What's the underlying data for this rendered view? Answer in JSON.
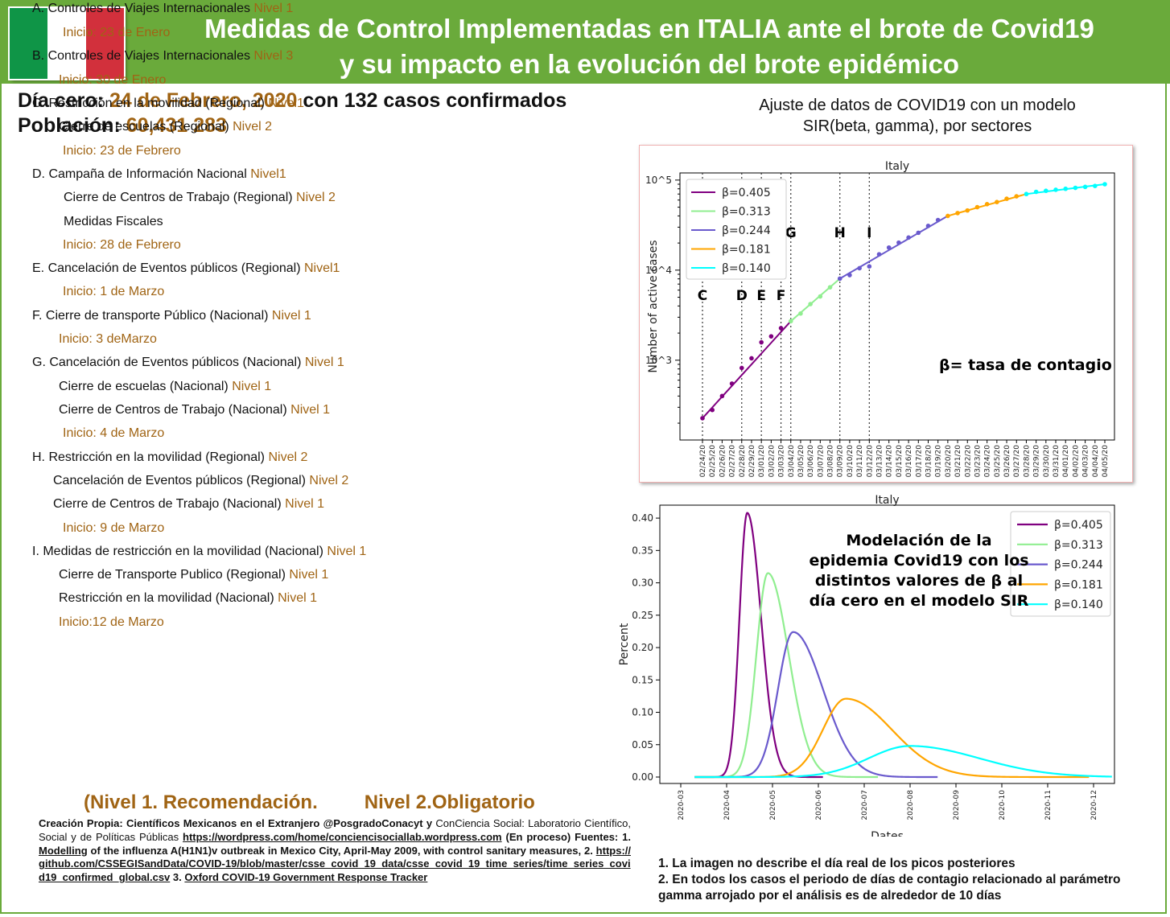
{
  "header": {
    "title_line1": "Medidas de Control Implementadas en ITALIA ante el brote de Covid19",
    "title_line2": "y su impacto en la evolución del brote epidémico",
    "flag_colors": [
      "#0f9547",
      "#ffffff",
      "#d2303c"
    ]
  },
  "info": {
    "day_zero_label": "Día cero:",
    "day_zero_date": "24 de Febrero, 2020",
    "day_zero_suffix": "con 132 casos confirmados",
    "population_label": "Población:",
    "population_value": "60,431 283"
  },
  "measures": [
    {
      "x": 40,
      "y": 195,
      "text": "A. Controles de Viajes Internacionales ",
      "level": "Nivel 1"
    },
    {
      "x": 78,
      "y": 225,
      "text": "",
      "level": "Inicio: 23 de Enero"
    },
    {
      "x": 40,
      "y": 254,
      "text": "B. Controles de Viajes Internacionales ",
      "level": "Nivel 3"
    },
    {
      "x": 73,
      "y": 284,
      "text": "",
      "level": "Inicio: 30 de Enero"
    },
    {
      "x": 40,
      "y": 313,
      "text": "C. Restricción en la movilidad (Regional) ",
      "level": "Nivel1"
    },
    {
      "x": 73,
      "y": 342,
      "text": "Cierre de escuelas (Regional) ",
      "level": "Nivel 2"
    },
    {
      "x": 78,
      "y": 372,
      "text": "",
      "level": "Inicio: 23 de Febrero"
    },
    {
      "x": 40,
      "y": 401,
      "text": "D.  Campaña de Información Nacional ",
      "level": "Nivel1"
    },
    {
      "x": 79,
      "y": 430,
      "text": "Cierre de Centros de Trabajo (Regional) ",
      "level": "Nivel 2"
    },
    {
      "x": 79,
      "y": 460,
      "text": "Medidas Fiscales",
      "level": ""
    },
    {
      "x": 78,
      "y": 489,
      "text": "",
      "level": "Inicio: 28 de Febrero"
    },
    {
      "x": 40,
      "y": 518,
      "text": "E.  Cancelación de Eventos públicos (Regional) ",
      "level": "Nivel1"
    },
    {
      "x": 78,
      "y": 547,
      "text": "",
      "level": "Inicio: 1 de Marzo"
    },
    {
      "x": 40,
      "y": 577,
      "text": "F. Cierre de transporte Público (Nacional) ",
      "level": "Nivel 1"
    },
    {
      "x": 73,
      "y": 606,
      "text": "",
      "level": "Inicio: 3  deMarzo"
    },
    {
      "x": 40,
      "y": 635,
      "text": "G. Cancelación de Eventos públicos (Nacional) ",
      "level": "Nivel 1"
    },
    {
      "x": 73,
      "y": 665,
      "text": "Cierre de escuelas (Nacional) ",
      "level": "Nivel 1"
    },
    {
      "x": 73,
      "y": 694,
      "text": "Cierre de Centros de Trabajo (Nacional) ",
      "level": "Nivel 1"
    },
    {
      "x": 78,
      "y": 723,
      "text": "",
      "level": "Inicio: 4 de Marzo"
    },
    {
      "x": 40,
      "y": 753,
      "text": "H.  Restricción en la movilidad (Regional) ",
      "level": "Nivel 2"
    },
    {
      "x": 66,
      "y": 782,
      "text": "Cancelación de Eventos públicos (Regional) ",
      "level": "Nivel 2"
    },
    {
      "x": 66,
      "y": 811,
      "text": "Cierre de Centros de Trabajo (Nacional) ",
      "level": "Nivel 1"
    },
    {
      "x": 78,
      "y": 841,
      "text": "",
      "level": "Inicio: 9 de Marzo"
    },
    {
      "x": 40,
      "y": 870,
      "text": "I. Medidas de restricción en la movilidad (Nacional) ",
      "level": "Nivel 1"
    },
    {
      "x": 73,
      "y": 899,
      "text": "Cierre de Transporte Publico (Regional) ",
      "level": "Nivel 1"
    },
    {
      "x": 73,
      "y": 928,
      "text": "Restricción en la movilidad (Nacional) ",
      "level": "Nivel 1"
    },
    {
      "x": 73,
      "y": 958,
      "text": "",
      "level": "Inicio:12 de Marzo"
    }
  ],
  "level_note": {
    "part1": "(Nivel 1. Recomendación.",
    "part2": "Nivel 2.Obligatorio"
  },
  "credits": {
    "lead": "Creación Propia: Científicos Mexicanos en el Extranjero @PosgradoConacyt y",
    "org": " ConCiencia Social: Laboratorio Científico, Social y de Políticas Públicas ",
    "link1": "https://wordpress.com/home/conciencisociallab.wordpress.com",
    "mid": " (En proceso) Fuentes:   1. ",
    "ref1": "Modelling",
    "ref1_rest": " of the influenza A(H1N1)v outbreak in Mexico City,   April-May 2009, with control sanitary measures, 2. ",
    "link2": "https://github.com/CSSEGISandData/COVID-19/blob/master/csse_covid_19_data/csse_covid_19_time_series/time_series_covid19_confirmed_global.csv",
    "ref3_prefix": "   3. ",
    "ref3": "Oxford COVID-19 Government Response Tracker"
  },
  "chart1_subtitle": {
    "line1": "Ajuste de datos de COVID19 con un modelo",
    "line2": "SIR(beta, gamma), por sectores"
  },
  "footnotes": {
    "line1": "1. La imagen no describe el día real de los picos posteriores",
    "line2": "2. En todos los casos el periodo de días de contagio relacionado   al parámetro gamma arrojado por el análisis  es de alrededor de 10 días"
  },
  "chart_data": [
    {
      "type": "line",
      "title": "Italy",
      "xlabel": "",
      "ylabel": "Number of active cases",
      "y_scale": "log",
      "ylim": [
        130,
        120000
      ],
      "yticks": [
        "10^3",
        "10^4",
        "10^5"
      ],
      "grid": false,
      "legend_position": "top-left",
      "annotation": "β= tasa de contagio",
      "x": [
        "02/24/20",
        "02/25/20",
        "02/26/20",
        "02/27/20",
        "02/28/20",
        "02/29/20",
        "03/01/20",
        "03/02/20",
        "03/03/20",
        "03/04/20",
        "03/05/20",
        "03/06/20",
        "03/07/20",
        "03/08/20",
        "03/09/20",
        "03/10/20",
        "03/11/20",
        "03/12/20",
        "03/13/20",
        "03/14/20",
        "03/15/20",
        "03/16/20",
        "03/17/20",
        "03/18/20",
        "03/19/20",
        "03/20/20",
        "03/21/20",
        "03/22/20",
        "03/23/20",
        "03/24/20",
        "03/25/20",
        "03/26/20",
        "03/27/20",
        "03/28/20",
        "03/29/20",
        "03/30/20",
        "03/31/20",
        "04/01/20",
        "04/02/20",
        "04/03/20",
        "04/04/20",
        "04/05/20"
      ],
      "observed": [
        227,
        280,
        400,
        550,
        820,
        1050,
        1580,
        1840,
        2270,
        2710,
        3300,
        4200,
        5100,
        6450,
        8050,
        8800,
        10500,
        11000,
        15000,
        17800,
        20200,
        23000,
        26000,
        31000,
        36000,
        40000,
        43000,
        46000,
        50000,
        54000,
        57000,
        62000,
        66000,
        70000,
        74000,
        76000,
        78000,
        80000,
        82000,
        84000,
        86000,
        90000
      ],
      "vlines": [
        {
          "label": "C",
          "x_index": 0
        },
        {
          "label": "D",
          "x_index": 4
        },
        {
          "label": "E",
          "x_index": 6
        },
        {
          "label": "F",
          "x_index": 8
        },
        {
          "label": "G",
          "x_index": 9
        },
        {
          "label": "H",
          "x_index": 14
        },
        {
          "label": "I",
          "x_index": 17
        }
      ],
      "series": [
        {
          "name": "β=0.405",
          "color": "#800080",
          "start": 0,
          "end": 9
        },
        {
          "name": "β=0.313",
          "color": "#90ee90",
          "start": 9,
          "end": 14
        },
        {
          "name": "β=0.244",
          "color": "#6a5acd",
          "start": 14,
          "end": 25
        },
        {
          "name": "β=0.181",
          "color": "#ffa500",
          "start": 25,
          "end": 33
        },
        {
          "name": "β=0.140",
          "color": "#00ffff",
          "start": 33,
          "end": 41
        }
      ]
    },
    {
      "type": "line",
      "title": "Italy",
      "xlabel": "Dates",
      "ylabel": "Percent",
      "ylim": [
        0,
        0.42
      ],
      "yticks": [
        "0.00",
        "0.05",
        "0.10",
        "0.15",
        "0.20",
        "0.25",
        "0.30",
        "0.35",
        "0.40"
      ],
      "xticks": [
        "2020-03",
        "2020-04",
        "2020-05",
        "2020-06",
        "2020-07",
        "2020-08",
        "2020-09",
        "2020-10",
        "2020-11",
        "2020-12"
      ],
      "grid": false,
      "legend_position": "top-right",
      "annotation_lines": [
        "Modelación de la",
        "epidemia Covid19 con los",
        "distintos valores de β al",
        "día cero en el modelo SIR"
      ],
      "series": [
        {
          "name": "β=0.405",
          "color": "#800080",
          "peak_month": 1.45,
          "peak": 0.408,
          "rise": 0.17,
          "fall": 0.3,
          "end_month": 3.1
        },
        {
          "name": "β=0.313",
          "color": "#90ee90",
          "peak_month": 1.9,
          "peak": 0.315,
          "rise": 0.25,
          "fall": 0.45,
          "end_month": 4.3
        },
        {
          "name": "β=0.244",
          "color": "#6a5acd",
          "peak_month": 2.45,
          "peak": 0.224,
          "rise": 0.33,
          "fall": 0.65,
          "end_month": 5.6
        },
        {
          "name": "β=0.181",
          "color": "#ffa500",
          "peak_month": 3.6,
          "peak": 0.121,
          "rise": 0.5,
          "fall": 1.0,
          "end_month": 8.9
        },
        {
          "name": "β=0.140",
          "color": "#00ffff",
          "peak_month": 5.0,
          "peak": 0.048,
          "rise": 0.9,
          "fall": 1.5,
          "end_month": 9.4
        }
      ]
    }
  ]
}
